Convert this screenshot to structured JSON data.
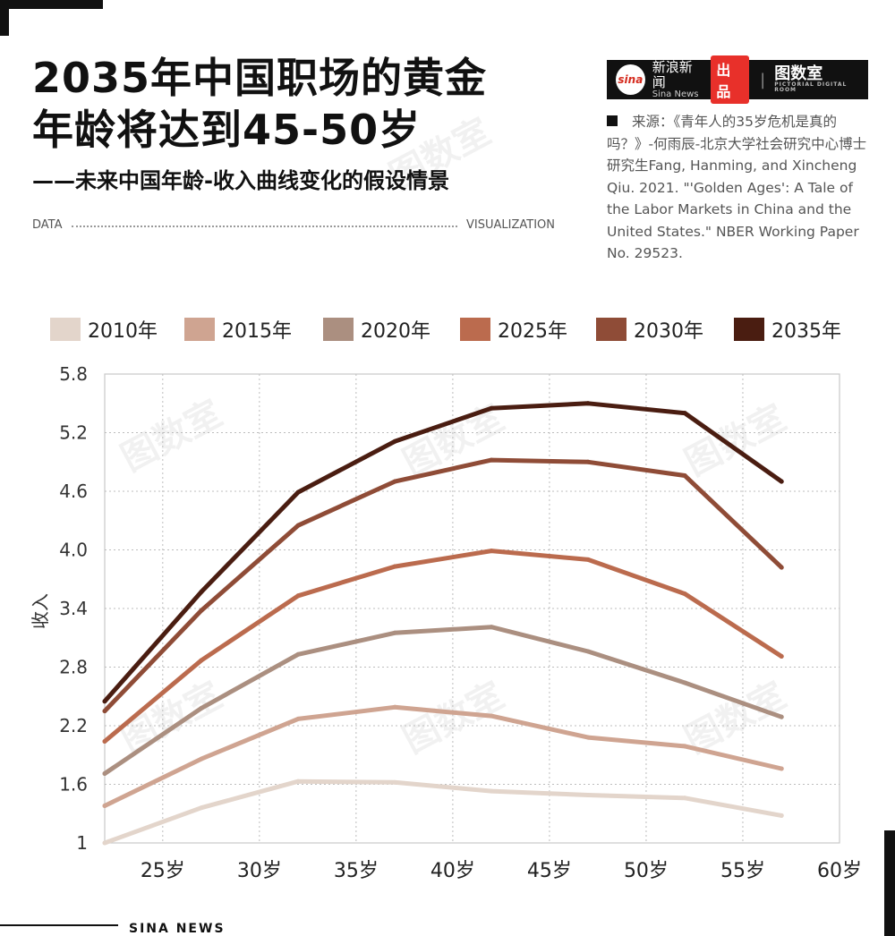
{
  "title": {
    "line1": "2035年中国职场的黄金",
    "line2": "年龄将达到45-50岁",
    "subtitle": "——未来中国年龄-收入曲线变化的假设情景"
  },
  "header": {
    "data_label": "DATA",
    "visualization_label": "VISUALIZATION"
  },
  "logo": {
    "sina_badge": "sina",
    "news_name_cn": "新浪新闻",
    "news_name_en": "Sina News",
    "product_label": "出品",
    "separator": "|",
    "brand_name": "图数室",
    "brand_tagline": "PICTORIAL DIGITAL ROOM"
  },
  "source": {
    "text": "来源：《青年人的35岁危机是真的吗？》-何雨辰-北京大学社会研究中心博士研究生Fang, Hanming, and Xincheng Qiu. 2021. \"'Golden Ages': A Tale of the Labor Markets in China and the United States.\" NBER Working Paper No. 29523."
  },
  "watermark_text": "图数室",
  "footer": {
    "text": "SINA NEWS"
  },
  "chart_data": {
    "type": "line",
    "title": "2035年中国职场的黄金年龄将达到45-50岁",
    "subtitle": "——未来中国年龄-收入曲线变化的假设情景",
    "xlabel": "",
    "ylabel": "收入",
    "x": [
      22,
      27,
      32,
      37,
      42,
      47,
      52,
      57
    ],
    "xlim": [
      22,
      60
    ],
    "x_ticks": [
      25,
      30,
      35,
      40,
      45,
      50,
      55,
      60
    ],
    "x_tick_labels": [
      "25岁",
      "30岁",
      "35岁",
      "40岁",
      "45岁",
      "50岁",
      "55岁",
      "60岁"
    ],
    "ylim": [
      1,
      5.8
    ],
    "y_ticks": [
      1,
      1.6,
      2.2,
      2.8,
      3.4,
      4.0,
      4.6,
      5.2,
      5.8
    ],
    "y_tick_labels": [
      "1",
      "1.6",
      "2.2",
      "2.8",
      "3.4",
      "4.0",
      "4.6",
      "5.2",
      "5.8"
    ],
    "grid": true,
    "legend_position": "top",
    "series": [
      {
        "name": "2010年",
        "color": "#e3d5cb",
        "values": [
          1.0,
          1.36,
          1.63,
          1.62,
          1.53,
          1.49,
          1.46,
          1.28
        ]
      },
      {
        "name": "2015年",
        "color": "#cfa491",
        "values": [
          1.38,
          1.86,
          2.27,
          2.39,
          2.3,
          2.08,
          1.99,
          1.76
        ]
      },
      {
        "name": "2020年",
        "color": "#ab8f80",
        "values": [
          1.71,
          2.38,
          2.93,
          3.15,
          3.21,
          2.96,
          2.64,
          2.29
        ]
      },
      {
        "name": "2025年",
        "color": "#bb6b4e",
        "values": [
          2.04,
          2.87,
          3.53,
          3.83,
          3.99,
          3.9,
          3.55,
          2.91
        ]
      },
      {
        "name": "2030年",
        "color": "#8f4c37",
        "values": [
          2.35,
          3.38,
          4.25,
          4.7,
          4.92,
          4.9,
          4.76,
          3.82
        ]
      },
      {
        "name": "2035年",
        "color": "#4a1d11",
        "values": [
          2.45,
          3.57,
          4.59,
          5.11,
          5.45,
          5.5,
          5.4,
          4.7
        ]
      }
    ]
  }
}
